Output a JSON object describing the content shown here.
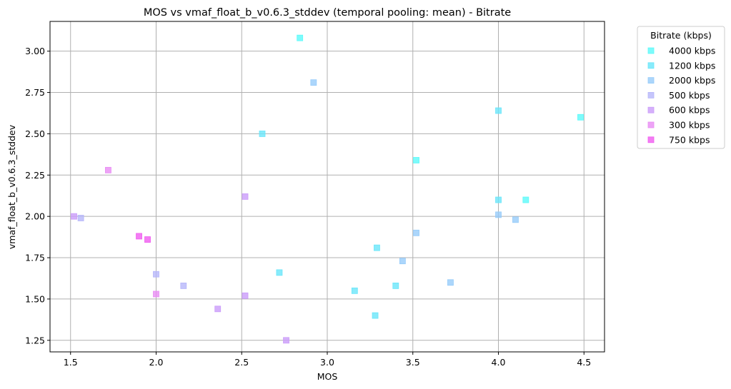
{
  "chart_data": {
    "type": "scatter",
    "title": "MOS vs vmaf_float_b_v0.6.3_stddev (temporal pooling: mean) - Bitrate",
    "xlabel": "MOS",
    "ylabel": "vmaf_float_b_v0.6.3_stddev",
    "xlim": [
      1.38,
      4.62
    ],
    "ylim": [
      1.18,
      3.18
    ],
    "xticks": [
      1.5,
      2.0,
      2.5,
      3.0,
      3.5,
      4.0,
      4.5
    ],
    "xtick_labels": [
      "1.5",
      "2.0",
      "2.5",
      "3.0",
      "3.5",
      "4.0",
      "4.5"
    ],
    "yticks": [
      1.25,
      1.5,
      1.75,
      2.0,
      2.25,
      2.5,
      2.75,
      3.0
    ],
    "ytick_labels": [
      "1.25",
      "1.50",
      "1.75",
      "2.00",
      "2.25",
      "2.50",
      "2.75",
      "3.00"
    ],
    "grid": true,
    "marker": "square",
    "legend": {
      "title": "Bitrate (kbps)",
      "placement": "outside-top-right"
    },
    "series": [
      {
        "name": "4000 kbps",
        "color": "#5cfafa",
        "points": [
          [
            2.84,
            3.08
          ],
          [
            4.48,
            2.6
          ],
          [
            3.52,
            2.34
          ],
          [
            4.16,
            2.1
          ]
        ]
      },
      {
        "name": "1200 kbps",
        "color": "#6ae6fa",
        "points": [
          [
            2.62,
            2.5
          ],
          [
            4.0,
            2.64
          ],
          [
            4.0,
            2.1
          ],
          [
            3.29,
            1.81
          ],
          [
            2.72,
            1.66
          ],
          [
            3.16,
            1.55
          ],
          [
            3.4,
            1.58
          ],
          [
            3.28,
            1.4
          ]
        ]
      },
      {
        "name": "2000 kbps",
        "color": "#97ccfa",
        "points": [
          [
            2.92,
            2.81
          ],
          [
            4.0,
            2.01
          ],
          [
            4.1,
            1.98
          ],
          [
            3.52,
            1.9
          ],
          [
            3.44,
            1.73
          ],
          [
            3.72,
            1.6
          ]
        ]
      },
      {
        "name": "500 kbps",
        "color": "#b6b6fa",
        "points": [
          [
            1.56,
            1.99
          ],
          [
            2.0,
            1.65
          ],
          [
            2.16,
            1.58
          ]
        ]
      },
      {
        "name": "600 kbps",
        "color": "#cb9cfa",
        "points": [
          [
            1.52,
            2.0
          ],
          [
            2.52,
            2.12
          ],
          [
            2.36,
            1.44
          ],
          [
            2.52,
            1.52
          ],
          [
            2.76,
            1.25
          ]
        ]
      },
      {
        "name": "300 kbps",
        "color": "#e88cf4",
        "points": [
          [
            1.72,
            2.28
          ],
          [
            2.0,
            1.53
          ]
        ]
      },
      {
        "name": "750 kbps",
        "color": "#f05cf0",
        "points": [
          [
            1.9,
            1.88
          ],
          [
            1.95,
            1.86
          ]
        ]
      }
    ]
  }
}
